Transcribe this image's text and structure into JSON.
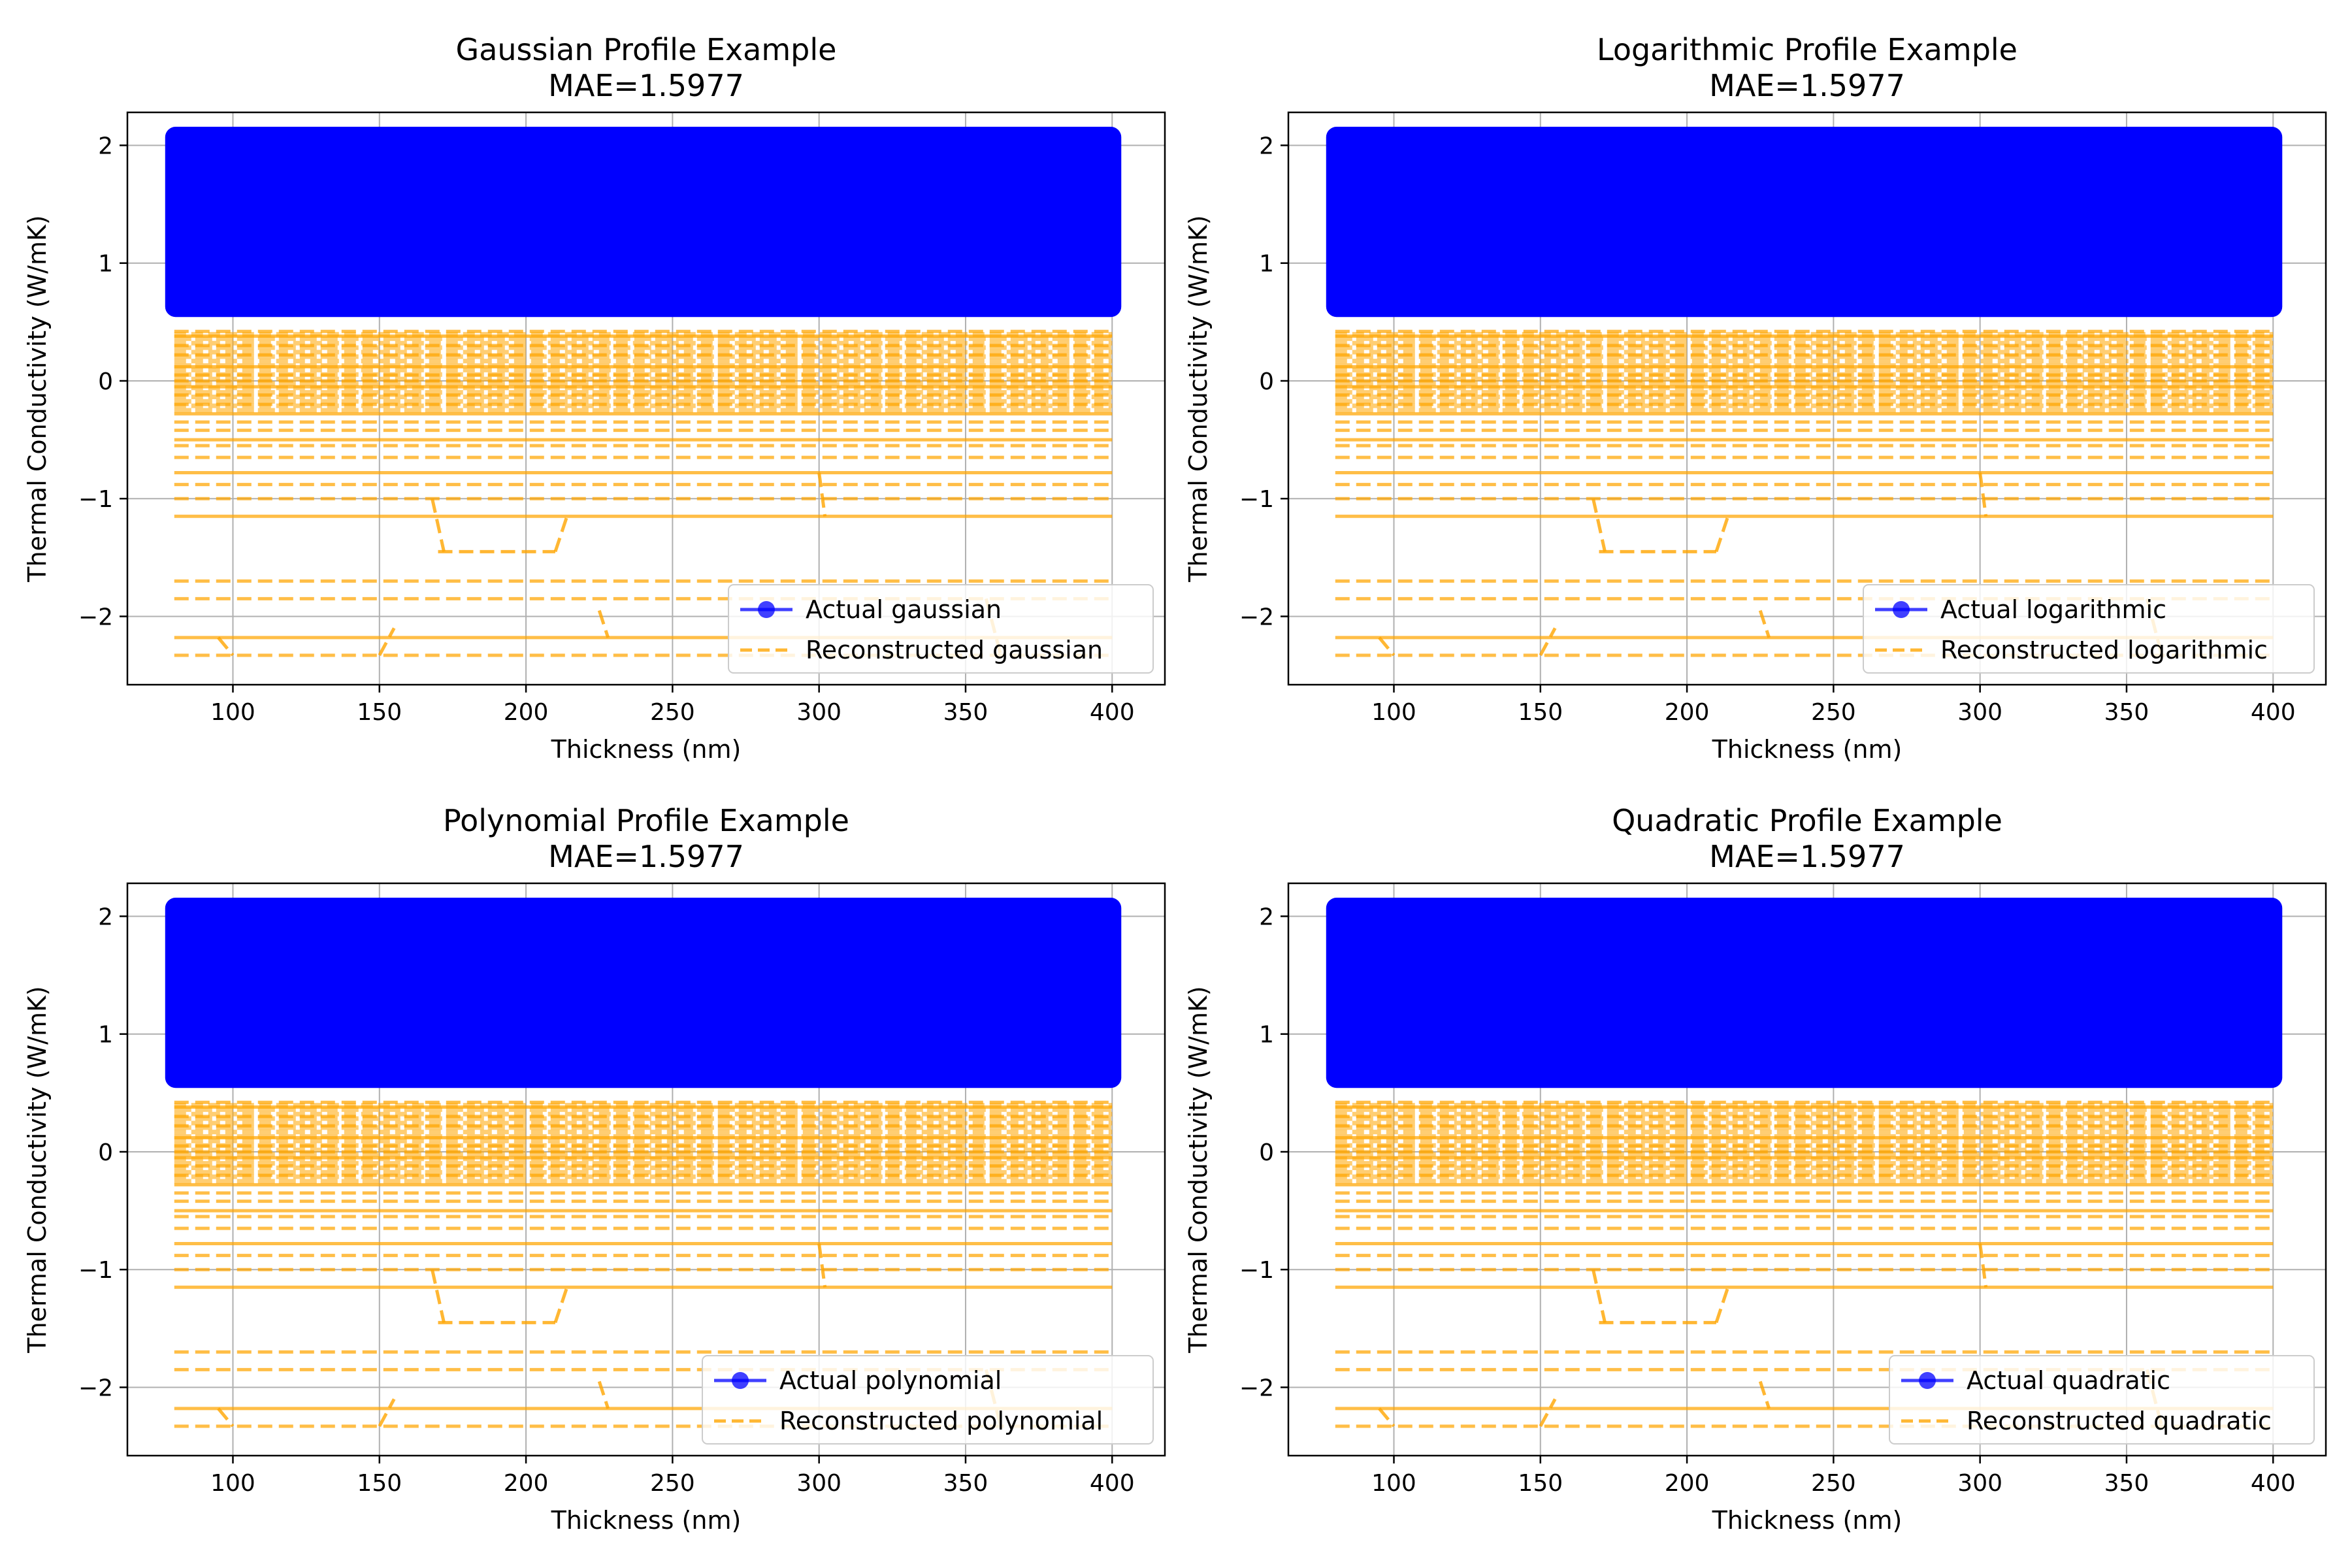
{
  "chart_data": [
    {
      "type": "line",
      "title": "Gaussian Profile Example",
      "subtitle": "MAE=1.5977",
      "xlabel": "Thickness (nm)",
      "ylabel": "Thermal Conductivity (W/mK)",
      "xlim": [
        64,
        418
      ],
      "ylim": [
        -2.58,
        2.28
      ],
      "xticks": [
        100,
        150,
        200,
        250,
        300,
        350,
        400
      ],
      "yticks": [
        -2,
        -1,
        0,
        1,
        2
      ],
      "grid": true,
      "legend_position": "lower-right",
      "series": [
        {
          "name": "Actual gaussian",
          "style": "line-marker",
          "color": "#0000ff",
          "x_range": [
            80,
            400
          ],
          "y_band": [
            0.62,
            2.08
          ]
        },
        {
          "name": "Reconstructed gaussian",
          "style": "dashed",
          "color": "#ffa500",
          "x_range": [
            80,
            400
          ],
          "y_band": [
            -2.35,
            0.45
          ]
        }
      ]
    },
    {
      "type": "line",
      "title": "Logarithmic Profile Example",
      "subtitle": "MAE=1.5977",
      "xlabel": "Thickness (nm)",
      "ylabel": "Thermal Conductivity (W/mK)",
      "xlim": [
        64,
        418
      ],
      "ylim": [
        -2.58,
        2.28
      ],
      "xticks": [
        100,
        150,
        200,
        250,
        300,
        350,
        400
      ],
      "yticks": [
        -2,
        -1,
        0,
        1,
        2
      ],
      "grid": true,
      "legend_position": "lower-right",
      "series": [
        {
          "name": "Actual logarithmic",
          "style": "line-marker",
          "color": "#0000ff",
          "x_range": [
            80,
            400
          ],
          "y_band": [
            0.62,
            2.08
          ]
        },
        {
          "name": "Reconstructed logarithmic",
          "style": "dashed",
          "color": "#ffa500",
          "x_range": [
            80,
            400
          ],
          "y_band": [
            -2.35,
            0.45
          ]
        }
      ]
    },
    {
      "type": "line",
      "title": "Polynomial Profile Example",
      "subtitle": "MAE=1.5977",
      "xlabel": "Thickness (nm)",
      "ylabel": "Thermal Conductivity (W/mK)",
      "xlim": [
        64,
        418
      ],
      "ylim": [
        -2.58,
        2.28
      ],
      "xticks": [
        100,
        150,
        200,
        250,
        300,
        350,
        400
      ],
      "yticks": [
        -2,
        -1,
        0,
        1,
        2
      ],
      "grid": true,
      "legend_position": "lower-right",
      "series": [
        {
          "name": "Actual polynomial",
          "style": "line-marker",
          "color": "#0000ff",
          "x_range": [
            80,
            400
          ],
          "y_band": [
            0.62,
            2.08
          ]
        },
        {
          "name": "Reconstructed polynomial",
          "style": "dashed",
          "color": "#ffa500",
          "x_range": [
            80,
            400
          ],
          "y_band": [
            -2.35,
            0.45
          ]
        }
      ]
    },
    {
      "type": "line",
      "title": "Quadratic Profile Example",
      "subtitle": "MAE=1.5977",
      "xlabel": "Thickness (nm)",
      "ylabel": "Thermal Conductivity (W/mK)",
      "xlim": [
        64,
        418
      ],
      "ylim": [
        -2.58,
        2.28
      ],
      "xticks": [
        100,
        150,
        200,
        250,
        300,
        350,
        400
      ],
      "yticks": [
        -2,
        -1,
        0,
        1,
        2
      ],
      "grid": true,
      "legend_position": "lower-right",
      "series": [
        {
          "name": "Actual quadratic",
          "style": "line-marker",
          "color": "#0000ff",
          "x_range": [
            80,
            400
          ],
          "y_band": [
            0.62,
            2.08
          ]
        },
        {
          "name": "Reconstructed quadratic",
          "style": "dashed",
          "color": "#ffa500",
          "x_range": [
            80,
            400
          ],
          "y_band": [
            -2.35,
            0.45
          ]
        }
      ]
    }
  ],
  "reconstructed_levels": [
    0.42,
    0.38,
    0.3,
    0.22,
    0.12,
    0.05,
    0.0,
    -0.05,
    -0.12,
    -0.2,
    -0.28,
    -0.35,
    -0.42,
    -0.5,
    -0.55,
    -0.65,
    -0.78,
    -0.88,
    -1.0,
    -1.15,
    -1.7,
    -1.85,
    -2.18,
    -2.33
  ],
  "reconstructed_steps": [
    {
      "x": [
        168,
        172
      ],
      "from": -1.0,
      "to": -1.45
    },
    {
      "x": [
        170,
        210
      ],
      "level": -1.45
    },
    {
      "x": [
        210,
        214
      ],
      "from": -1.45,
      "to": -1.15
    },
    {
      "x": [
        300,
        302
      ],
      "from": -0.78,
      "to": -1.15
    },
    {
      "x": [
        95,
        100
      ],
      "from": -2.18,
      "to": -2.33
    },
    {
      "x": [
        150,
        155
      ],
      "from": -2.33,
      "to": -2.1
    },
    {
      "x": [
        225,
        228
      ],
      "from": -1.95,
      "to": -2.18
    },
    {
      "x": [
        357,
        362
      ],
      "from": -1.85,
      "to": -2.33
    }
  ]
}
